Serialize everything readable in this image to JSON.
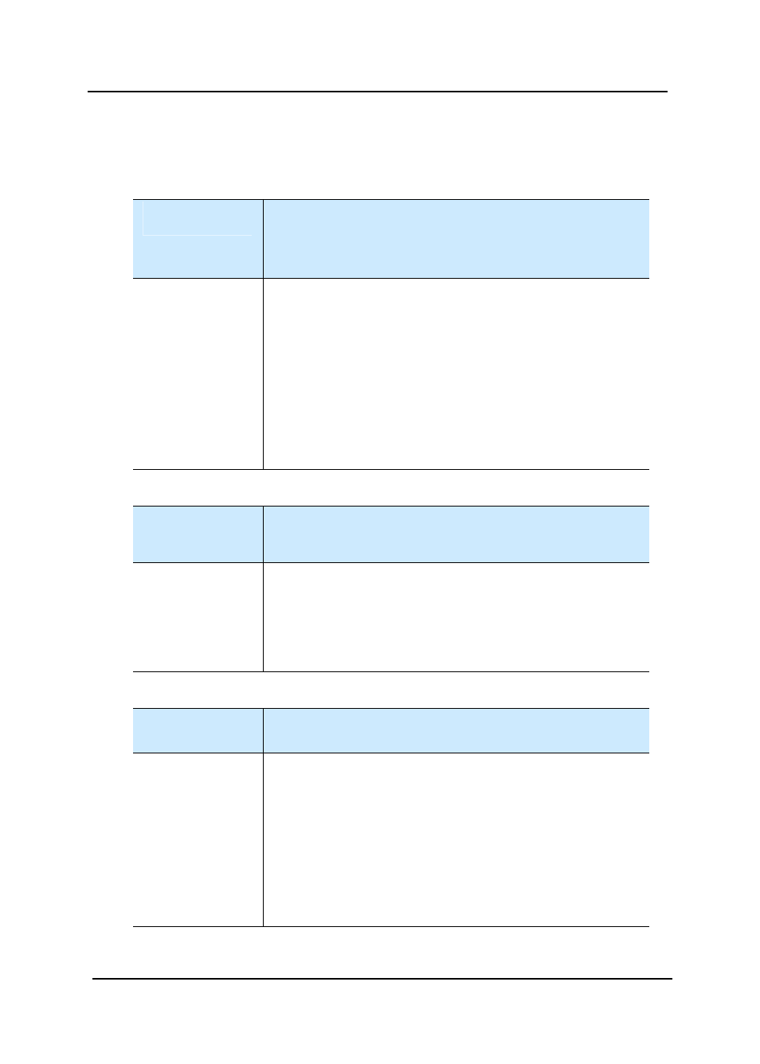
{
  "colors": {
    "header_fill": "#cdeafe",
    "rule": "#000000",
    "background": "#ffffff"
  },
  "tables": [
    {
      "header": [
        "",
        ""
      ],
      "body": [
        "",
        ""
      ]
    },
    {
      "header": [
        "",
        ""
      ],
      "body": [
        "",
        ""
      ]
    },
    {
      "header": [
        "",
        ""
      ],
      "body": [
        "",
        ""
      ]
    }
  ]
}
